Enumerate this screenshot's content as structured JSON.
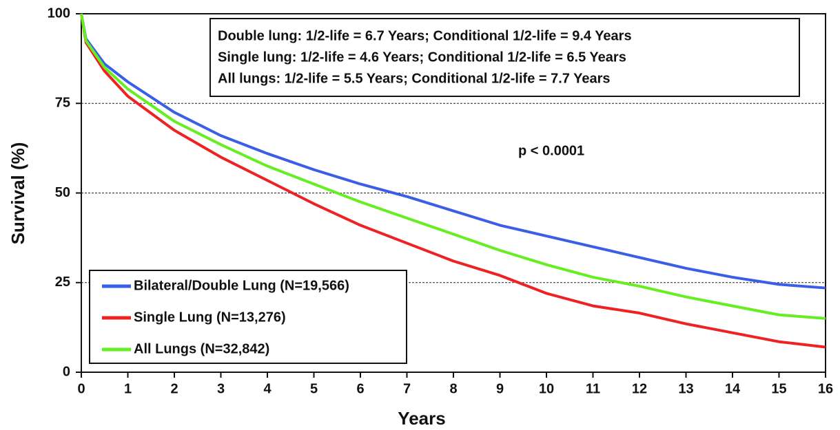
{
  "chart_data": {
    "type": "line",
    "x_label": "Years",
    "y_label": "Survival (%)",
    "x": [
      0,
      0.1,
      0.5,
      1,
      2,
      3,
      4,
      5,
      6,
      7,
      8,
      9,
      10,
      11,
      12,
      13,
      14,
      15,
      16
    ],
    "series": [
      {
        "name": "Bilateral/Double Lung (N=19,566)",
        "color": "#3a5fe6",
        "values": [
          100,
          93,
          86,
          81,
          72.5,
          66,
          61,
          56.5,
          52.5,
          49,
          45,
          41,
          38,
          35,
          32,
          29,
          26.5,
          24.5,
          23.5
        ]
      },
      {
        "name": "Single Lung (N=13,276)",
        "color": "#ee2222",
        "values": [
          100,
          92,
          84,
          77,
          67.5,
          60,
          53.5,
          47,
          41,
          36,
          31,
          27,
          22,
          18.5,
          16.5,
          13.5,
          11,
          8.5,
          7
        ]
      },
      {
        "name": "All Lungs (N=32,842)",
        "color": "#66ee22",
        "values": [
          100,
          92.5,
          85,
          79,
          70,
          63.5,
          57.5,
          52.5,
          47.5,
          43,
          38.5,
          34,
          30,
          26.5,
          24,
          21,
          18.5,
          16,
          15
        ]
      }
    ],
    "xlim": [
      0,
      16
    ],
    "xticks": [
      0,
      1,
      2,
      3,
      4,
      5,
      6,
      7,
      8,
      9,
      10,
      11,
      12,
      13,
      14,
      15,
      16
    ],
    "ylim": [
      0,
      100
    ],
    "yticks": [
      0,
      25,
      50,
      75,
      100
    ],
    "grid": true,
    "legend": "lower left",
    "annotations": [
      "Double lung: 1/2-life = 6.7 Years; Conditional 1/2-life = 9.4 Years",
      "Single lung: 1/2-life = 4.6 Years; Conditional 1/2-life = 6.5 Years",
      "All lungs: 1/2-life = 5.5 Years; Conditional 1/2-life = 7.7 Years",
      "p < 0.0001"
    ]
  }
}
